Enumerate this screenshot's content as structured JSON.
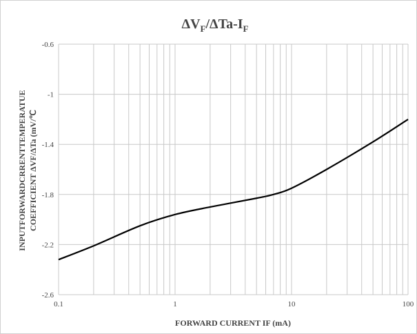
{
  "chart_data": {
    "type": "line",
    "title": {
      "main": "ΔV",
      "sub1": "F",
      "mid": "/ΔTa-I",
      "sub2": "F"
    },
    "xlabel": "FORWARD CURRENT IF (mA)",
    "ylabel_line1": "INPUTFORWARDCRRENTTEMPERATUE",
    "ylabel_line2": "COEFFICIENT ΔVF/ΔTa (mV/℃",
    "x_scale": "log",
    "xlim": [
      0.1,
      100
    ],
    "ylim": [
      -0.6,
      -2.6
    ],
    "x_ticks": [
      0.1,
      1,
      10,
      100
    ],
    "x_tick_labels": [
      "0.1",
      "1",
      "10",
      "100"
    ],
    "y_ticks": [
      -2.6,
      -2.2,
      -1.8,
      -1.4,
      -1,
      -0.6
    ],
    "y_tick_labels": [
      "-2.6",
      "-2.2",
      "-1.8",
      "-1.4",
      "-1",
      "-0.6"
    ],
    "grid": true,
    "series": [
      {
        "x": [
          0.1,
          0.2,
          0.5,
          1,
          2,
          5,
          7,
          10,
          20,
          50,
          100
        ],
        "y": [
          -2.32,
          -2.21,
          -2.05,
          -1.96,
          -1.9,
          -1.83,
          -1.8,
          -1.75,
          -1.6,
          -1.38,
          -1.2
        ]
      }
    ],
    "colors": {
      "line": "#000000",
      "grid": "#c8c8c8",
      "frame": "#d0d0d0",
      "text": "#444444"
    }
  }
}
